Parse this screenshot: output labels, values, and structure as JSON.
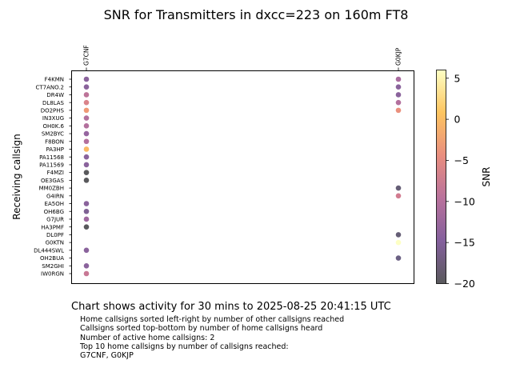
{
  "chart_data": {
    "type": "scatter",
    "title": "SNR for Transmitters in dxcc=223 on 160m FT8",
    "xlabel": "",
    "ylabel": "Receiving callsign",
    "x_categories": [
      "G7CNF",
      "G0KJP"
    ],
    "y_categories": [
      "F4KMN",
      "CT7ANO.2",
      "DR4W",
      "DL8LAS",
      "DO2PHS",
      "IN3XUG",
      "OH0K.6",
      "SM2BYC",
      "F8BON",
      "PA3HP",
      "PA11568",
      "PA11569",
      "F4MZI",
      "OE3GAS",
      "MM0ZBH",
      "G4IRN",
      "EA5OH",
      "OH6BG",
      "G7JUR",
      "HA3PMF",
      "DL0PF",
      "G0KTN",
      "DL444SWL",
      "OH2BUA",
      "SM2GHI",
      "IW0RGN"
    ],
    "points": [
      {
        "x": "G7CNF",
        "y": "F4KMN",
        "snr": -14
      },
      {
        "x": "G7CNF",
        "y": "CT7ANO.2",
        "snr": -14
      },
      {
        "x": "G7CNF",
        "y": "DR4W",
        "snr": -9
      },
      {
        "x": "G7CNF",
        "y": "DL8LAS",
        "snr": -6
      },
      {
        "x": "G7CNF",
        "y": "DO2PHS",
        "snr": -3
      },
      {
        "x": "G7CNF",
        "y": "IN3XUG",
        "snr": -10
      },
      {
        "x": "G7CNF",
        "y": "OH0K.6",
        "snr": -10
      },
      {
        "x": "G7CNF",
        "y": "SM2BYC",
        "snr": -13
      },
      {
        "x": "G7CNF",
        "y": "F8BON",
        "snr": -10
      },
      {
        "x": "G7CNF",
        "y": "PA3HP",
        "snr": 0
      },
      {
        "x": "G7CNF",
        "y": "PA11568",
        "snr": -14
      },
      {
        "x": "G7CNF",
        "y": "PA11569",
        "snr": -14
      },
      {
        "x": "G7CNF",
        "y": "F4MZI",
        "snr": -20
      },
      {
        "x": "G7CNF",
        "y": "OE3GAS",
        "snr": -20
      },
      {
        "x": "G7CNF",
        "y": "EA5OH",
        "snr": -14
      },
      {
        "x": "G7CNF",
        "y": "OH6BG",
        "snr": -15
      },
      {
        "x": "G7CNF",
        "y": "G7JUR",
        "snr": -12
      },
      {
        "x": "G7CNF",
        "y": "HA3PMF",
        "snr": -20
      },
      {
        "x": "G7CNF",
        "y": "DL444SWL",
        "snr": -14
      },
      {
        "x": "G7CNF",
        "y": "SM2GHI",
        "snr": -14
      },
      {
        "x": "G7CNF",
        "y": "IW0RGN",
        "snr": -8
      },
      {
        "x": "G0KJP",
        "y": "F4KMN",
        "snr": -11
      },
      {
        "x": "G0KJP",
        "y": "CT7ANO.2",
        "snr": -14
      },
      {
        "x": "G0KJP",
        "y": "DR4W",
        "snr": -14
      },
      {
        "x": "G0KJP",
        "y": "DL8LAS",
        "snr": -10
      },
      {
        "x": "G0KJP",
        "y": "DO2PHS",
        "snr": -4
      },
      {
        "x": "G0KJP",
        "y": "MM0ZBH",
        "snr": -18
      },
      {
        "x": "G0KJP",
        "y": "G4IRN",
        "snr": -7
      },
      {
        "x": "G0KJP",
        "y": "DL0PF",
        "snr": -18
      },
      {
        "x": "G0KJP",
        "y": "G0KTN",
        "snr": 6
      },
      {
        "x": "G0KJP",
        "y": "OH2BUA",
        "snr": -17
      }
    ],
    "colorbar": {
      "label": "SNR",
      "min": -20,
      "max": 6,
      "ticks": [
        5,
        0,
        -5,
        -10,
        -15,
        -20
      ]
    },
    "grid": false,
    "legend": "none"
  },
  "footer": {
    "caption": "Chart shows activity for 30 mins to 2025-08-25 20:41:15 UTC",
    "notes": [
      "Home callsigns sorted left-right by number of other callsigns reached",
      "Callsigns sorted top-bottom by number of home callsigns heard",
      "Number of active home callsigns: 2",
      "Top 10 home callsigns by number of callsigns reached:",
      "G7CNF, G0KJP"
    ]
  }
}
